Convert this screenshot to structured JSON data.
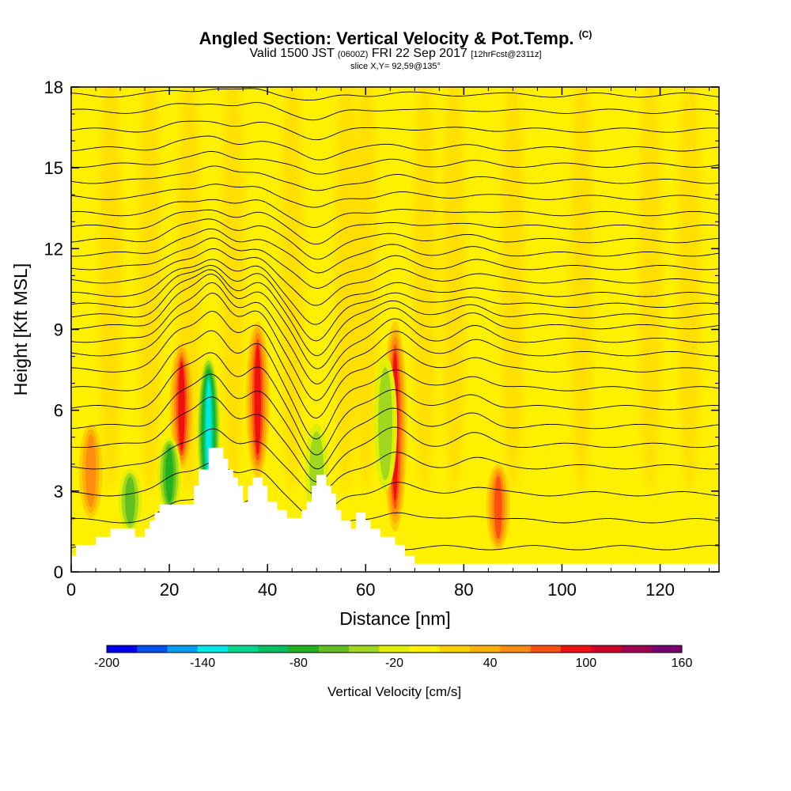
{
  "header": {
    "title": "Angled Section: Vertical Velocity & Pot.Temp.",
    "title_unit": "(C)",
    "valid_prefix": "Valid 1500 JST",
    "valid_zulu": "(0600Z)",
    "valid_date": "FRI 22 Sep 2017",
    "forecast": "[12hrFcst@2311z]",
    "slice": "slice X,Y= 92,59@135°"
  },
  "chart_data": {
    "type": "heatmap",
    "xlabel": "Distance [nm]",
    "ylabel": "Height [Kft MSL]",
    "xlim": [
      0,
      132
    ],
    "ylim": [
      0,
      18
    ],
    "xticks": [
      0,
      20,
      40,
      60,
      80,
      100,
      120
    ],
    "yticks": [
      0,
      3,
      6,
      9,
      12,
      15,
      18
    ],
    "background_value": "0 to 20 cm/s",
    "colorbar": {
      "label": "Vertical Velocity [cm/s]",
      "min": -200,
      "max": 160,
      "step": 20,
      "tick_labels": [
        -200,
        -140,
        -80,
        -20,
        40,
        100,
        160
      ],
      "colors": [
        "#0000f0",
        "#0050f0",
        "#00a0f0",
        "#00e8e8",
        "#00d890",
        "#00c060",
        "#20b020",
        "#60c020",
        "#a0d820",
        "#e0f000",
        "#fff000",
        "#ffd000",
        "#ffb000",
        "#ff8c10",
        "#ff5010",
        "#f01010",
        "#d00028",
        "#a00050",
        "#780070"
      ]
    },
    "updrafts": [
      {
        "x": 4,
        "y": [
          2.0,
          5.5
        ],
        "peak": 60
      },
      {
        "x": 22.5,
        "y": [
          3.8,
          8.5
        ],
        "peak": 110
      },
      {
        "x": 38,
        "y": [
          3.5,
          9.3
        ],
        "peak": 110
      },
      {
        "x": 66,
        "y": [
          1.5,
          9.3
        ],
        "peak": 110
      },
      {
        "x": 87,
        "y": [
          0.8,
          4.0
        ],
        "peak": 80
      }
    ],
    "downdrafts": [
      {
        "x": 28,
        "y": [
          2.4,
          8.0
        ],
        "peak": -140
      },
      {
        "x": 20,
        "y": [
          2.2,
          5.0
        ],
        "peak": -80
      },
      {
        "x": 12,
        "y": [
          1.5,
          3.8
        ],
        "peak": -60
      },
      {
        "x": 50,
        "y": [
          2.0,
          5.5
        ],
        "peak": -40
      },
      {
        "x": 64,
        "y": [
          3.0,
          8.0
        ],
        "peak": -40
      }
    ],
    "terrain_profile_kft": [
      [
        0,
        0.6
      ],
      [
        1,
        0.6
      ],
      [
        1,
        1.0
      ],
      [
        5,
        1.0
      ],
      [
        5,
        1.3
      ],
      [
        8,
        1.3
      ],
      [
        8,
        1.6
      ],
      [
        13,
        1.6
      ],
      [
        13,
        1.3
      ],
      [
        15,
        1.3
      ],
      [
        15,
        1.6
      ],
      [
        16,
        1.6
      ],
      [
        16,
        1.9
      ],
      [
        17,
        1.9
      ],
      [
        17,
        2.2
      ],
      [
        18,
        2.2
      ],
      [
        18,
        2.5
      ],
      [
        25,
        2.5
      ],
      [
        25,
        3.2
      ],
      [
        26,
        3.2
      ],
      [
        26,
        3.8
      ],
      [
        28,
        3.8
      ],
      [
        28,
        4.6
      ],
      [
        31,
        4.6
      ],
      [
        31,
        4.2
      ],
      [
        32,
        4.2
      ],
      [
        32,
        3.8
      ],
      [
        33,
        3.8
      ],
      [
        33,
        3.5
      ],
      [
        34,
        3.5
      ],
      [
        34,
        3.2
      ],
      [
        35,
        3.2
      ],
      [
        35,
        2.6
      ],
      [
        36,
        2.6
      ],
      [
        36,
        3.2
      ],
      [
        37,
        3.2
      ],
      [
        37,
        3.5
      ],
      [
        39,
        3.5
      ],
      [
        39,
        3.2
      ],
      [
        40,
        3.2
      ],
      [
        40,
        2.6
      ],
      [
        42,
        2.6
      ],
      [
        42,
        2.3
      ],
      [
        44,
        2.3
      ],
      [
        44,
        2.0
      ],
      [
        47,
        2.0
      ],
      [
        47,
        2.3
      ],
      [
        48,
        2.3
      ],
      [
        48,
        2.6
      ],
      [
        49,
        2.6
      ],
      [
        49,
        3.2
      ],
      [
        50,
        3.2
      ],
      [
        50,
        3.6
      ],
      [
        52,
        3.6
      ],
      [
        52,
        3.2
      ],
      [
        53,
        3.2
      ],
      [
        53,
        2.9
      ],
      [
        54,
        2.9
      ],
      [
        54,
        2.3
      ],
      [
        55,
        2.3
      ],
      [
        55,
        1.9
      ],
      [
        57,
        1.9
      ],
      [
        57,
        1.6
      ],
      [
        58,
        1.6
      ],
      [
        58,
        2.2
      ],
      [
        60,
        2.2
      ],
      [
        60,
        1.9
      ],
      [
        61,
        1.9
      ],
      [
        61,
        1.6
      ],
      [
        63,
        1.6
      ],
      [
        63,
        1.3
      ],
      [
        66,
        1.3
      ],
      [
        66,
        1.0
      ],
      [
        68,
        1.0
      ],
      [
        68,
        0.6
      ],
      [
        70,
        0.6
      ],
      [
        70,
        0.3
      ],
      [
        132,
        0.3
      ]
    ],
    "isentropes": [
      {
        "label": "",
        "y0": 0.9,
        "amp": 0.0
      },
      {
        "label": "",
        "y0": 1.9,
        "amp": 0.6
      },
      {
        "label": "",
        "y0": 2.9,
        "amp": 0.7
      },
      {
        "label": "",
        "y0": 3.9,
        "amp": 0.8
      },
      {
        "label": "",
        "y0": 4.7,
        "amp": 1.0
      },
      {
        "label": "",
        "y0": 5.4,
        "amp": 1.1
      },
      {
        "label": "",
        "y0": 6.1,
        "amp": 1.2
      },
      {
        "label": "",
        "y0": 6.8,
        "amp": 1.3
      },
      {
        "label": "",
        "y0": 7.5,
        "amp": 1.3
      },
      {
        "label": "",
        "y0": 8.1,
        "amp": 1.3
      },
      {
        "label": "",
        "y0": 8.6,
        "amp": 1.2
      },
      {
        "label": "",
        "y0": 9.1,
        "amp": 1.1
      },
      {
        "label": "",
        "y0": 9.5,
        "amp": 1.0
      },
      {
        "label": "",
        "y0": 9.9,
        "amp": 0.9
      },
      {
        "label": "",
        "y0": 10.3,
        "amp": 0.8
      },
      {
        "label": "",
        "y0": 10.8,
        "amp": 0.7
      },
      {
        "label": "",
        "y0": 11.3,
        "amp": 0.6
      },
      {
        "label": "",
        "y0": 11.8,
        "amp": 0.5
      },
      {
        "label": "",
        "y0": 12.3,
        "amp": 0.45
      },
      {
        "label": "",
        "y0": 12.8,
        "amp": 0.4
      },
      {
        "label": "",
        "y0": 13.3,
        "amp": 0.35
      },
      {
        "label": "",
        "y0": 13.9,
        "amp": 0.3
      },
      {
        "label": "",
        "y0": 14.5,
        "amp": 0.3
      },
      {
        "label": "",
        "y0": 15.1,
        "amp": 0.25
      },
      {
        "label": "",
        "y0": 15.7,
        "amp": 0.25
      },
      {
        "label": "",
        "y0": 16.4,
        "amp": 0.2
      },
      {
        "label": "",
        "y0": 17.1,
        "amp": 0.2
      },
      {
        "label": "",
        "y0": 17.7,
        "amp": 0.15
      }
    ]
  }
}
